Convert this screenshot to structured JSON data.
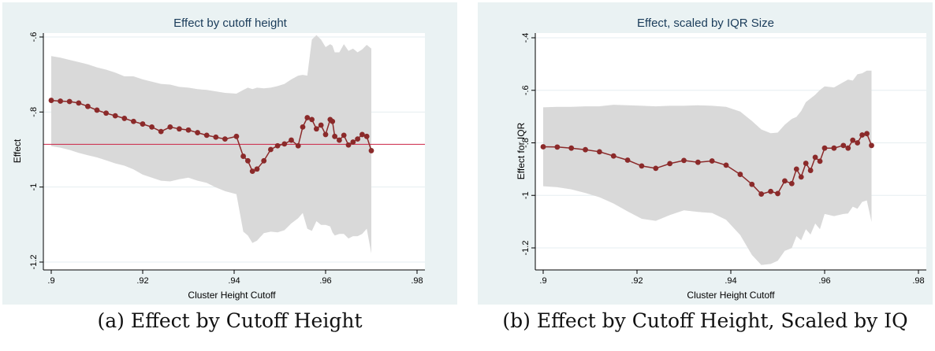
{
  "chart_data": [
    {
      "type": "line",
      "title": "Effect by cutoff height",
      "xlabel": "Cluster Height Cutoff",
      "ylabel": "Effect",
      "xlim": [
        0.9,
        0.98
      ],
      "ylim": [
        -1.2,
        -0.6
      ],
      "xticks": [
        ".9",
        ".92",
        ".94",
        ".96",
        ".98"
      ],
      "yticks": [
        "-.6",
        "-.8",
        "-1",
        "-1.2"
      ],
      "xtick_values": [
        0.9,
        0.92,
        0.94,
        0.96,
        0.98
      ],
      "ytick_values": [
        -0.6,
        -0.8,
        -1,
        -1.2
      ],
      "reference_line": -0.886,
      "reference_line_color": "#cc2244",
      "point_color": "#8b2a2a",
      "band_color": "#d9d9d9",
      "background_color": "#eaf2f3",
      "caption": "(a) Effect by Cutoff Height",
      "series": [
        {
          "x": [
            0.9,
            0.902,
            0.904,
            0.906,
            0.908,
            0.91,
            0.912,
            0.914,
            0.916,
            0.918,
            0.92,
            0.922,
            0.924,
            0.926,
            0.928,
            0.93,
            0.932,
            0.934,
            0.936,
            0.938,
            0.9405,
            0.942,
            0.943,
            0.944,
            0.945,
            0.9465,
            0.948,
            0.9495,
            0.951,
            0.9525,
            0.954,
            0.955,
            0.956,
            0.957,
            0.958,
            0.959,
            0.96,
            0.961,
            0.9615,
            0.962,
            0.963,
            0.964,
            0.965,
            0.966,
            0.967,
            0.968,
            0.969,
            0.97
          ],
          "y": [
            -0.769,
            -0.771,
            -0.772,
            -0.776,
            -0.785,
            -0.795,
            -0.803,
            -0.81,
            -0.817,
            -0.825,
            -0.832,
            -0.84,
            -0.852,
            -0.84,
            -0.845,
            -0.848,
            -0.855,
            -0.862,
            -0.867,
            -0.872,
            -0.865,
            -0.918,
            -0.93,
            -0.958,
            -0.952,
            -0.93,
            -0.9,
            -0.89,
            -0.885,
            -0.875,
            -0.89,
            -0.84,
            -0.815,
            -0.82,
            -0.845,
            -0.835,
            -0.86,
            -0.82,
            -0.825,
            -0.865,
            -0.875,
            -0.862,
            -0.888,
            -0.88,
            -0.872,
            -0.86,
            -0.865,
            -0.903
          ],
          "upper": [
            -0.651,
            -0.655,
            -0.661,
            -0.667,
            -0.673,
            -0.681,
            -0.687,
            -0.695,
            -0.705,
            -0.705,
            -0.713,
            -0.719,
            -0.725,
            -0.727,
            -0.733,
            -0.735,
            -0.739,
            -0.741,
            -0.745,
            -0.749,
            -0.751,
            -0.741,
            -0.735,
            -0.739,
            -0.735,
            -0.737,
            -0.735,
            -0.731,
            -0.725,
            -0.713,
            -0.703,
            -0.701,
            -0.703,
            -0.607,
            -0.595,
            -0.607,
            -0.627,
            -0.619,
            -0.623,
            -0.641,
            -0.641,
            -0.619,
            -0.637,
            -0.631,
            -0.641,
            -0.633,
            -0.621,
            -0.631
          ],
          "lower": [
            -0.891,
            -0.895,
            -0.901,
            -0.909,
            -0.915,
            -0.921,
            -0.929,
            -0.937,
            -0.943,
            -0.953,
            -0.967,
            -0.975,
            -0.983,
            -0.985,
            -0.979,
            -0.975,
            -0.983,
            -0.989,
            -1.001,
            -1.011,
            -1.019,
            -1.119,
            -1.129,
            -1.149,
            -1.143,
            -1.123,
            -1.119,
            -1.121,
            -1.115,
            -1.097,
            -1.083,
            -1.069,
            -1.111,
            -1.117,
            -1.091,
            -1.101,
            -1.101,
            -1.105,
            -1.121,
            -1.129,
            -1.125,
            -1.125,
            -1.137,
            -1.131,
            -1.131,
            -1.125,
            -1.111,
            -1.177
          ]
        }
      ]
    },
    {
      "type": "line",
      "title": "Effect, scaled by IQR Size",
      "xlabel": "Cluster Height Cutoff",
      "ylabel": "Effect for IQR",
      "xlim": [
        0.9,
        0.98
      ],
      "ylim": [
        -1.3,
        -0.4
      ],
      "xticks": [
        ".9",
        ".92",
        ".94",
        ".96",
        ".98"
      ],
      "yticks": [
        "-.4",
        "-.6",
        "-.8",
        "-1",
        "-1.2"
      ],
      "xtick_values": [
        0.9,
        0.92,
        0.94,
        0.96,
        0.98
      ],
      "ytick_values": [
        -0.4,
        -0.6,
        -0.8,
        -1,
        -1.2
      ],
      "point_color": "#8b2a2a",
      "band_color": "#d9d9d9",
      "background_color": "#eaf2f3",
      "caption": "(b) Effect by Cutoff Height, Scaled by IQ",
      "series": [
        {
          "x": [
            0.9,
            0.903,
            0.906,
            0.909,
            0.912,
            0.915,
            0.918,
            0.921,
            0.924,
            0.927,
            0.93,
            0.933,
            0.936,
            0.939,
            0.942,
            0.9445,
            0.9465,
            0.9485,
            0.95,
            0.9515,
            0.953,
            0.954,
            0.955,
            0.956,
            0.957,
            0.958,
            0.959,
            0.96,
            0.962,
            0.964,
            0.965,
            0.966,
            0.967,
            0.968,
            0.969,
            0.97
          ],
          "y": [
            -0.815,
            -0.816,
            -0.82,
            -0.826,
            -0.834,
            -0.85,
            -0.866,
            -0.888,
            -0.897,
            -0.879,
            -0.867,
            -0.874,
            -0.869,
            -0.885,
            -0.92,
            -0.958,
            -0.995,
            -0.985,
            -0.993,
            -0.945,
            -0.955,
            -0.9,
            -0.93,
            -0.878,
            -0.905,
            -0.855,
            -0.87,
            -0.82,
            -0.82,
            -0.81,
            -0.82,
            -0.79,
            -0.8,
            -0.77,
            -0.765,
            -0.81
          ],
          "upper": [
            -0.665,
            -0.663,
            -0.663,
            -0.661,
            -0.661,
            -0.655,
            -0.657,
            -0.659,
            -0.661,
            -0.659,
            -0.659,
            -0.657,
            -0.659,
            -0.663,
            -0.681,
            -0.717,
            -0.749,
            -0.763,
            -0.761,
            -0.731,
            -0.709,
            -0.701,
            -0.679,
            -0.645,
            -0.631,
            -0.617,
            -0.599,
            -0.585,
            -0.589,
            -0.569,
            -0.559,
            -0.563,
            -0.539,
            -0.535,
            -0.525,
            -0.525
          ],
          "lower": [
            -0.965,
            -0.969,
            -0.977,
            -0.991,
            -1.007,
            -1.031,
            -1.061,
            -1.089,
            -1.097,
            -1.075,
            -1.057,
            -1.063,
            -1.067,
            -1.093,
            -1.151,
            -1.227,
            -1.265,
            -1.261,
            -1.249,
            -1.211,
            -1.201,
            -1.155,
            -1.171,
            -1.129,
            -1.149,
            -1.107,
            -1.129,
            -1.071,
            -1.079,
            -1.071,
            -1.069,
            -1.043,
            -1.051,
            -1.025,
            -1.019,
            -1.101
          ]
        }
      ]
    }
  ]
}
